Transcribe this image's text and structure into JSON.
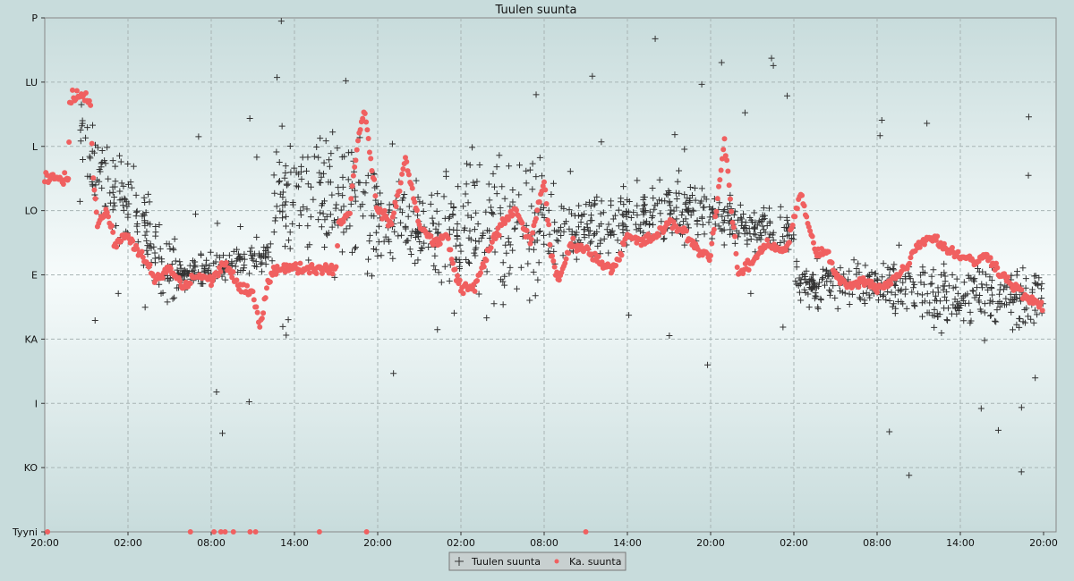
{
  "chart_data": {
    "type": "scatter",
    "title": "Tuulen suunta",
    "grid": true,
    "legend_position": "bottom-center",
    "y_categories": [
      "Tyyni",
      "KO",
      "I",
      "KA",
      "E",
      "LO",
      "L",
      "LU",
      "P"
    ],
    "x_tick_labels": [
      "20:00",
      "02:00",
      "08:00",
      "14:00",
      "20:00",
      "02:00",
      "08:00",
      "14:00",
      "20:00",
      "02:00",
      "08:00",
      "14:00",
      "20:00"
    ],
    "x_range_hours": [
      0,
      72
    ],
    "colors": {
      "wind": "#333333",
      "average": "#f06060",
      "background_edge": "#c8dcdc",
      "background_center": "#f6fbfb"
    },
    "series": [
      {
        "name": "Tuulen suunta",
        "marker": "plus",
        "segments": [
          {
            "x": [
              2.5,
              9.5
            ],
            "y": [
              6.0,
              4.0
            ],
            "spread": 0.9
          },
          {
            "x": [
              9.5,
              16.5
            ],
            "y": [
              4.0,
              4.3
            ],
            "spread": 0.3
          },
          {
            "x": [
              16.5,
              24.0
            ],
            "y": [
              5.3,
              5.0
            ],
            "spread": 1.4
          },
          {
            "x": [
              24.0,
              28.5
            ],
            "y": [
              4.8,
              4.6
            ],
            "spread": 1.0
          },
          {
            "x": [
              28.5,
              36.0
            ],
            "y": [
              4.6,
              4.8
            ],
            "spread": 1.6
          },
          {
            "x": [
              36.0,
              47.0
            ],
            "y": [
              4.6,
              5.1
            ],
            "spread": 0.7
          },
          {
            "x": [
              47.0,
              54.0
            ],
            "y": [
              5.0,
              4.6
            ],
            "spread": 0.5
          },
          {
            "x": [
              54.0,
              61.0
            ],
            "y": [
              3.9,
              3.8
            ],
            "spread": 0.5
          },
          {
            "x": [
              61.0,
              72.0
            ],
            "y": [
              3.8,
              3.6
            ],
            "spread": 0.8
          }
        ]
      },
      {
        "name": "Ka. suunta",
        "marker": "dot",
        "points": [
          [
            0.0,
            5.5
          ],
          [
            1.6,
            5.5
          ],
          [
            1.7,
            5.5
          ],
          [
            1.8,
            6.6
          ],
          [
            2.0,
            6.8
          ],
          [
            2.8,
            6.8
          ],
          [
            3.3,
            6.7
          ],
          [
            3.5,
            5.5
          ],
          [
            3.8,
            4.8
          ],
          [
            4.5,
            5.0
          ],
          [
            5.0,
            4.5
          ],
          [
            6.0,
            4.6
          ],
          [
            7.0,
            4.3
          ],
          [
            8.0,
            3.9
          ],
          [
            9.0,
            4.1
          ],
          [
            10.0,
            3.8
          ],
          [
            11.0,
            4.0
          ],
          [
            12.0,
            3.9
          ],
          [
            13.0,
            4.2
          ],
          [
            14.0,
            3.8
          ],
          [
            15.0,
            3.7
          ],
          [
            15.5,
            3.2
          ],
          [
            16.0,
            3.8
          ],
          [
            16.5,
            4.1
          ],
          [
            18.0,
            4.1
          ],
          [
            20.5,
            4.1
          ],
          [
            21.0,
            4.1
          ],
          [
            21.2,
            4.8
          ],
          [
            22.0,
            5.0
          ],
          [
            22.5,
            6.0
          ],
          [
            23.0,
            6.6
          ],
          [
            23.5,
            5.8
          ],
          [
            24.0,
            5.0
          ],
          [
            25.0,
            4.8
          ],
          [
            26.0,
            5.8
          ],
          [
            26.5,
            5.3
          ],
          [
            27.0,
            4.8
          ],
          [
            28.0,
            4.5
          ],
          [
            29.0,
            4.6
          ],
          [
            29.5,
            4.1
          ],
          [
            30.0,
            3.8
          ],
          [
            31.0,
            3.8
          ],
          [
            32.0,
            4.4
          ],
          [
            33.0,
            4.8
          ],
          [
            34.0,
            5.0
          ],
          [
            35.0,
            4.5
          ],
          [
            36.0,
            5.5
          ],
          [
            36.5,
            4.3
          ],
          [
            37.0,
            3.9
          ],
          [
            38.0,
            4.5
          ],
          [
            39.0,
            4.4
          ],
          [
            40.0,
            4.2
          ],
          [
            41.0,
            4.1
          ],
          [
            42.0,
            4.6
          ],
          [
            43.0,
            4.5
          ],
          [
            44.0,
            4.6
          ],
          [
            45.0,
            4.8
          ],
          [
            46.0,
            4.7
          ],
          [
            47.0,
            4.4
          ],
          [
            48.0,
            4.3
          ],
          [
            48.5,
            5.2
          ],
          [
            49.0,
            6.1
          ],
          [
            49.5,
            5.0
          ],
          [
            50.0,
            4.0
          ],
          [
            51.0,
            4.2
          ],
          [
            52.0,
            4.5
          ],
          [
            53.0,
            4.4
          ],
          [
            53.5,
            4.4
          ],
          [
            54.5,
            5.3
          ],
          [
            55.0,
            4.8
          ],
          [
            55.5,
            4.4
          ],
          [
            56.5,
            4.3
          ],
          [
            57.0,
            4.0
          ],
          [
            58.0,
            3.8
          ],
          [
            59.0,
            3.9
          ],
          [
            60.0,
            3.8
          ],
          [
            61.0,
            3.9
          ],
          [
            62.0,
            4.1
          ],
          [
            63.0,
            4.5
          ],
          [
            64.0,
            4.6
          ],
          [
            65.0,
            4.4
          ],
          [
            66.0,
            4.3
          ],
          [
            67.0,
            4.2
          ],
          [
            68.0,
            4.3
          ],
          [
            69.0,
            4.0
          ],
          [
            70.0,
            3.8
          ],
          [
            71.0,
            3.6
          ],
          [
            72.0,
            3.5
          ]
        ]
      }
    ]
  },
  "legend": {
    "items": [
      {
        "label": "Tuulen suunta",
        "icon": "plus-marker"
      },
      {
        "label": "Ka. suunta",
        "icon": "dot-marker"
      }
    ]
  }
}
